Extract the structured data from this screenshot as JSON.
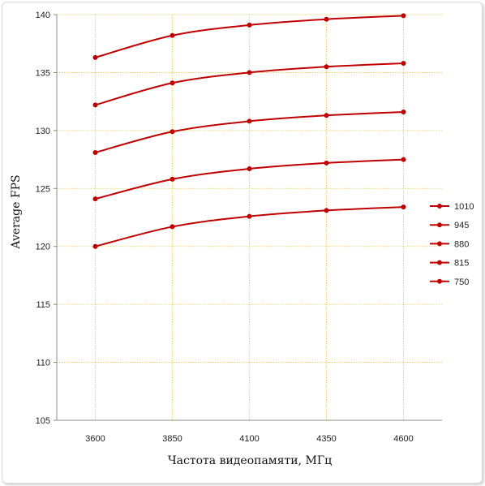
{
  "chart_data": {
    "type": "line",
    "title": "",
    "xlabel": "Частота видеопамяти, МГц",
    "ylabel": "Average FPS",
    "x": [
      3600,
      3850,
      4100,
      4350,
      4600
    ],
    "x_tick_labels": [
      "3600",
      "3850",
      "4100",
      "4350",
      "4600"
    ],
    "ylim": [
      105,
      140
    ],
    "y_ticks": [
      105,
      110,
      115,
      120,
      125,
      130,
      135,
      140
    ],
    "grid": true,
    "legend_position": "right",
    "line_color": "#c00000",
    "grid_color": "#e6c84a",
    "series": [
      {
        "name": "1010",
        "values": [
          136.3,
          138.2,
          139.1,
          139.6,
          139.9
        ]
      },
      {
        "name": "945",
        "values": [
          132.2,
          134.1,
          135.0,
          135.5,
          135.8
        ]
      },
      {
        "name": "880",
        "values": [
          128.1,
          129.9,
          130.8,
          131.3,
          131.6
        ]
      },
      {
        "name": "815",
        "values": [
          124.1,
          125.8,
          126.7,
          127.2,
          127.5
        ]
      },
      {
        "name": "750",
        "values": [
          120.0,
          121.7,
          122.6,
          123.1,
          123.4
        ]
      }
    ]
  }
}
